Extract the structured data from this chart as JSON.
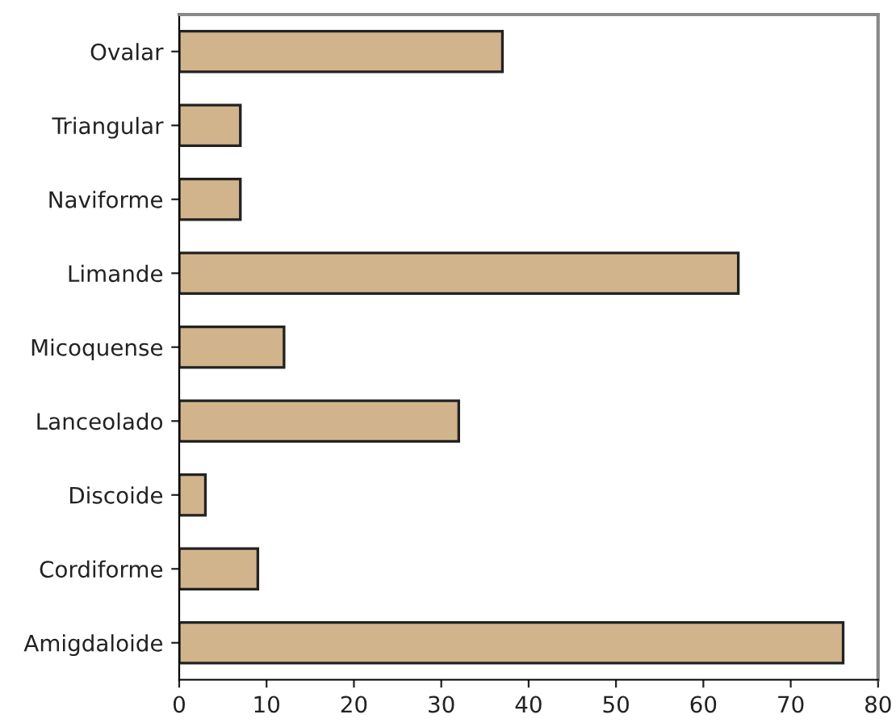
{
  "chart_data": {
    "type": "bar",
    "orientation": "horizontal",
    "categories": [
      "Ovalar",
      "Triangular",
      "Naviforme",
      "Limande",
      "Micoquense",
      "Lanceolado",
      "Discoide",
      "Cordiforme",
      "Amigdaloide"
    ],
    "values": [
      37,
      7,
      7,
      64,
      12,
      32,
      3,
      9,
      76
    ],
    "color": "#d2b48c",
    "xlim": [
      0,
      80
    ],
    "xticks": [
      0,
      10,
      20,
      30,
      40,
      50,
      60,
      70,
      80
    ],
    "grid": false
  }
}
